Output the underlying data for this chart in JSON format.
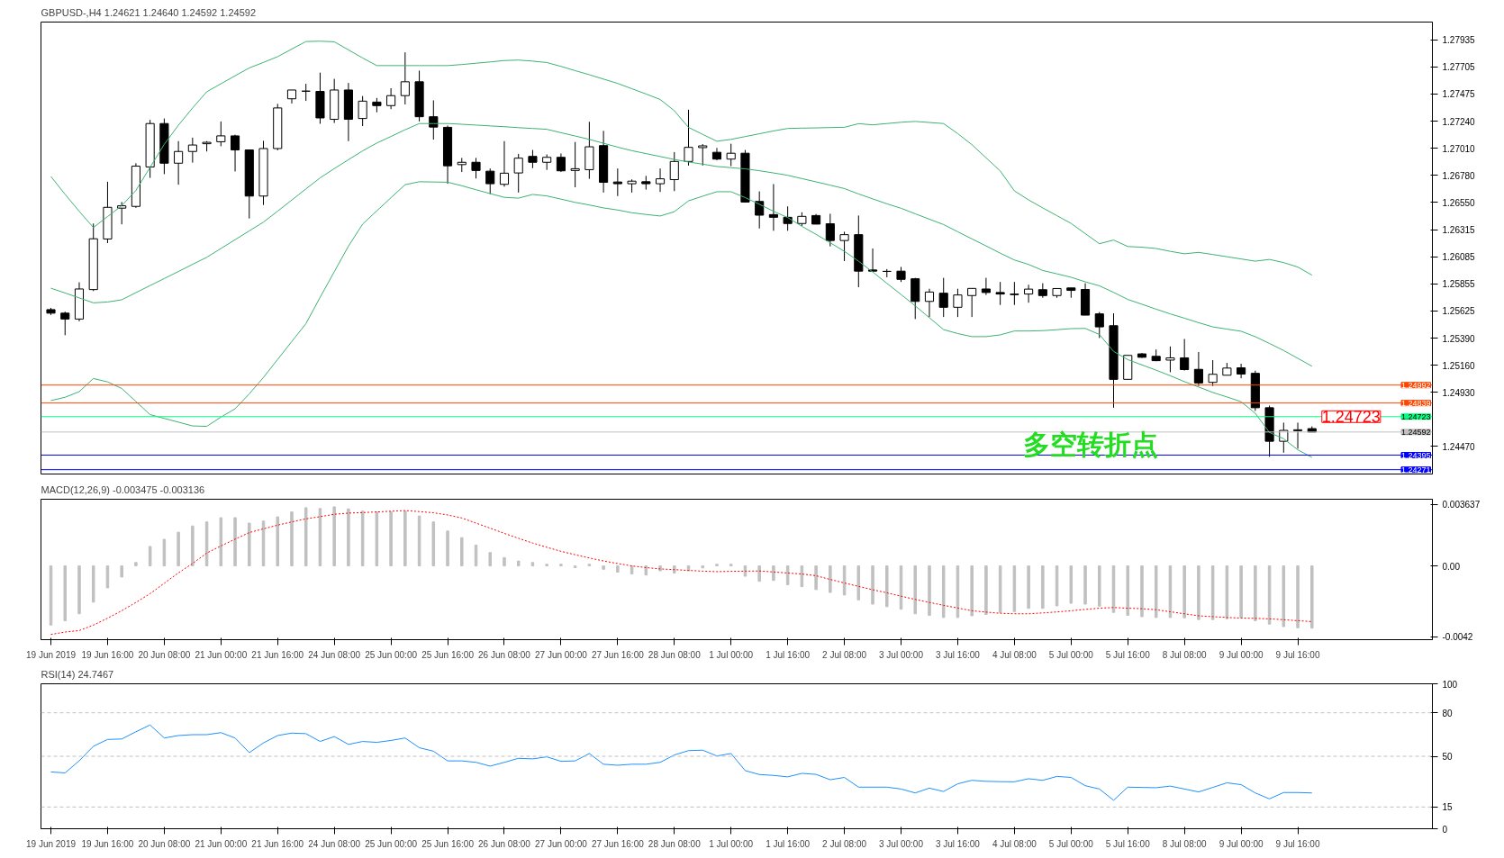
{
  "chart_data": [
    {
      "type": "candlestick",
      "title": "GBPUSD-,H4  1.24621 1.24640 1.24592 1.24592",
      "categories": [
        null,
        null,
        null,
        null,
        null,
        null,
        null,
        null,
        null,
        null,
        null,
        null,
        null,
        null,
        null,
        null,
        null,
        null,
        null,
        null,
        null,
        null,
        null,
        null,
        null,
        null,
        null,
        null,
        null,
        null,
        null,
        null,
        null,
        null,
        null,
        null,
        null,
        null,
        null,
        null,
        null,
        null,
        null,
        null,
        null,
        null,
        null,
        null,
        null,
        null,
        null,
        null,
        null,
        null,
        null,
        null,
        null,
        null,
        null,
        null,
        null,
        null,
        null,
        null,
        null,
        null,
        null,
        null,
        null,
        null,
        null,
        null,
        null,
        null,
        null,
        null,
        null,
        null,
        null,
        null,
        null,
        null,
        null,
        null,
        null,
        null,
        null,
        null,
        null,
        null
      ],
      "ohlc": [
        [
          1.25635,
          1.2565,
          1.2559,
          1.25605
        ],
        [
          1.25605,
          1.25618,
          1.25417,
          1.25555
        ],
        [
          1.25555,
          1.25868,
          1.25535,
          1.25811
        ],
        [
          1.25806,
          1.26369,
          1.25793,
          1.26239
        ],
        [
          1.26237,
          1.26725,
          1.26202,
          1.26507
        ],
        [
          1.265,
          1.26552,
          1.26362,
          1.2652
        ],
        [
          1.26515,
          1.26883,
          1.26502,
          1.26858
        ],
        [
          1.26851,
          1.27252,
          1.26758,
          1.27221
        ],
        [
          1.27221,
          1.27264,
          1.2679,
          1.26883
        ],
        [
          1.26883,
          1.27071,
          1.267,
          1.26983
        ],
        [
          1.26983,
          1.27101,
          1.26888,
          1.27038
        ],
        [
          1.27049,
          1.27071,
          1.26983,
          1.27061
        ],
        [
          1.27066,
          1.27239,
          1.27028,
          1.27116
        ],
        [
          1.27116,
          1.27126,
          1.26813,
          1.26996
        ],
        [
          1.26996,
          1.26996,
          1.26412,
          1.26603
        ],
        [
          1.26603,
          1.27074,
          1.26527,
          1.27008
        ],
        [
          1.27008,
          1.27389,
          1.26993,
          1.27354
        ],
        [
          1.27432,
          1.27507,
          1.27392,
          1.27507
        ],
        [
          1.27497,
          1.2756,
          1.27414,
          1.27497
        ],
        [
          1.27495,
          1.27655,
          1.27219,
          1.27269
        ],
        [
          1.27257,
          1.27602,
          1.27226,
          1.27507
        ],
        [
          1.27507,
          1.27567,
          1.27071,
          1.27257
        ],
        [
          1.27264,
          1.27455,
          1.27199,
          1.27412
        ],
        [
          1.27404,
          1.27439,
          1.27317,
          1.27374
        ],
        [
          1.27374,
          1.27522,
          1.27344,
          1.27459
        ],
        [
          1.27459,
          1.27828,
          1.27384,
          1.27577
        ],
        [
          1.27577,
          1.27672,
          1.27239,
          1.27279
        ],
        [
          1.27279,
          1.27419,
          1.27084,
          1.27191
        ],
        [
          1.27189,
          1.27204,
          1.26708,
          1.26861
        ],
        [
          1.26871,
          1.26928,
          1.26808,
          1.26891
        ],
        [
          1.26891,
          1.26928,
          1.26753,
          1.26821
        ],
        [
          1.26815,
          1.26838,
          1.2662,
          1.26708
        ],
        [
          1.26703,
          1.27071,
          1.26683,
          1.26798
        ],
        [
          1.268,
          1.26963,
          1.26633,
          1.26926
        ],
        [
          1.26941,
          1.26996,
          1.26841,
          1.26891
        ],
        [
          1.26891,
          1.26958,
          1.26826,
          1.26933
        ],
        [
          1.26933,
          1.26966,
          1.26808,
          1.26818
        ],
        [
          1.26821,
          1.27064,
          1.26678,
          1.26836
        ],
        [
          1.26828,
          1.27236,
          1.2675,
          1.27023
        ],
        [
          1.27033,
          1.27159,
          1.26633,
          1.2672
        ],
        [
          1.26723,
          1.26838,
          1.26603,
          1.26708
        ],
        [
          1.26708,
          1.26745,
          1.26633,
          1.2673
        ],
        [
          1.26725,
          1.26775,
          1.26658,
          1.26708
        ],
        [
          1.26708,
          1.26838,
          1.26638,
          1.2675
        ],
        [
          1.26743,
          1.26978,
          1.26645,
          1.26898
        ],
        [
          1.26898,
          1.27339,
          1.26863,
          1.27018
        ],
        [
          1.27016,
          1.27046,
          1.26863,
          1.27031
        ],
        [
          1.26976,
          1.27013,
          1.26908,
          1.26918
        ],
        [
          1.26918,
          1.27049,
          1.26858,
          1.26968
        ],
        [
          1.26968,
          1.26996,
          1.26547,
          1.26552
        ],
        [
          1.26557,
          1.26643,
          1.26327,
          1.2644
        ],
        [
          1.26445,
          1.26705,
          1.26307,
          1.26422
        ],
        [
          1.26422,
          1.26515,
          1.26307,
          1.26369
        ],
        [
          1.26369,
          1.26465,
          1.26349,
          1.2643
        ],
        [
          1.26437,
          1.2645,
          1.26362,
          1.26364
        ],
        [
          1.26367,
          1.26452,
          1.26174,
          1.26224
        ],
        [
          1.26224,
          1.26299,
          1.26049,
          1.26274
        ],
        [
          1.26274,
          1.26437,
          1.25826,
          1.25963
        ],
        [
          1.25973,
          1.26156,
          1.25961,
          1.25963
        ],
        [
          1.25961,
          1.25981,
          1.25911,
          1.25961
        ],
        [
          1.25963,
          1.25999,
          1.25871,
          1.25893
        ],
        [
          1.25898,
          1.25906,
          1.25555,
          1.25705
        ],
        [
          1.25705,
          1.25813,
          1.25572,
          1.25785
        ],
        [
          1.25775,
          1.25906,
          1.25572,
          1.25655
        ],
        [
          1.25655,
          1.25813,
          1.25572,
          1.2576
        ],
        [
          1.25755,
          1.25816,
          1.25572,
          1.25816
        ],
        [
          1.25811,
          1.25906,
          1.2576,
          1.25781
        ],
        [
          1.25781,
          1.25871,
          1.25675,
          1.25768
        ],
        [
          1.25768,
          1.25871,
          1.25675,
          1.25763
        ],
        [
          1.25768,
          1.25847,
          1.25694,
          1.2581
        ],
        [
          1.25805,
          1.2586,
          1.25736,
          1.25755
        ],
        [
          1.25755,
          1.25815,
          1.25736,
          1.25815
        ],
        [
          1.2582,
          1.2582,
          1.25736,
          1.25799
        ],
        [
          1.25807,
          1.2586,
          1.25588,
          1.25588
        ],
        [
          1.25599,
          1.25615,
          1.25393,
          1.25488
        ],
        [
          1.25498,
          1.25604,
          1.24799,
          1.25041
        ],
        [
          1.25041,
          1.25245,
          1.25041,
          1.25245
        ],
        [
          1.25258,
          1.25266,
          1.25224,
          1.25229
        ],
        [
          1.25237,
          1.25295,
          1.25195,
          1.252
        ],
        [
          1.25205,
          1.25321,
          1.25102,
          1.25224
        ],
        [
          1.25224,
          1.25385,
          1.25116,
          1.25124
        ],
        [
          1.25126,
          1.25274,
          1.24984,
          1.2501
        ],
        [
          1.25015,
          1.25205,
          1.24984,
          1.25084
        ],
        [
          1.25076,
          1.25181,
          1.25076,
          1.25137
        ],
        [
          1.25139,
          1.25174,
          1.2505,
          1.25086
        ],
        [
          1.25092,
          1.25115,
          1.24772,
          1.24799
        ],
        [
          1.24799,
          1.24817,
          1.24381,
          1.24513
        ],
        [
          1.24513,
          1.24672,
          1.24416,
          1.24606
        ],
        [
          1.24603,
          1.24672,
          1.2445,
          1.24611
        ],
        [
          1.24621,
          1.2464,
          1.24592,
          1.24592
        ]
      ],
      "series": [
        {
          "type": "line",
          "color": "#3cb371",
          "values": [
            1.2677,
            1.26618,
            1.26473,
            1.26335,
            1.26428,
            1.26521,
            1.26651,
            1.26848,
            1.27044,
            1.27207,
            1.27354,
            1.27492,
            1.2756,
            1.27628,
            1.27695,
            1.27742,
            1.27791,
            1.27856,
            1.2792,
            1.27923,
            1.27918,
            1.27849,
            1.2778,
            1.27715,
            1.27715,
            1.27715,
            1.27715,
            1.27715,
            1.27715,
            1.27724,
            1.27735,
            1.27746,
            1.27758,
            1.27762,
            1.27753,
            1.27741,
            1.27708,
            1.27672,
            1.27637,
            1.276,
            1.27563,
            1.27518,
            1.27473,
            1.27426,
            1.2733,
            1.27188,
            1.27129,
            1.2707,
            1.27086,
            1.2711,
            1.27134,
            1.27158,
            1.27179,
            1.27182,
            1.27184,
            1.27187,
            1.27189,
            1.2722,
            1.2721,
            1.27221,
            1.27232,
            1.27239,
            1.2723,
            1.27221,
            1.27135,
            1.27041,
            1.26929,
            1.26817,
            1.26647,
            1.2657,
            1.26502,
            1.26436,
            1.2637,
            1.26283,
            1.26197,
            1.26228,
            1.26173,
            1.26167,
            1.26156,
            1.26132,
            1.26111,
            1.26123,
            1.26105,
            1.26086,
            1.26067,
            1.26048,
            1.26063,
            1.26036,
            1.25998,
            1.25929
          ]
        },
        {
          "type": "line",
          "color": "#3cb371",
          "values": [
            1.25818,
            1.25777,
            1.25735,
            1.25693,
            1.257,
            1.25719,
            1.2578,
            1.2584,
            1.259,
            1.2596,
            1.26021,
            1.26081,
            1.26156,
            1.26231,
            1.26306,
            1.26381,
            1.26474,
            1.26569,
            1.26664,
            1.26758,
            1.26837,
            1.26913,
            1.26988,
            1.27055,
            1.27111,
            1.27168,
            1.27221,
            1.27221,
            1.27221,
            1.27215,
            1.27208,
            1.27201,
            1.27194,
            1.27186,
            1.27179,
            1.27172,
            1.27143,
            1.27115,
            1.27086,
            1.27053,
            1.2702,
            1.2699,
            1.26965,
            1.2694,
            1.26915,
            1.26893,
            1.26875,
            1.26855,
            1.26845,
            1.26835,
            1.26819,
            1.268,
            1.2678,
            1.26752,
            1.26724,
            1.26696,
            1.26667,
            1.26621,
            1.26579,
            1.26537,
            1.26499,
            1.26452,
            1.26406,
            1.2636,
            1.26299,
            1.26238,
            1.26178,
            1.26116,
            1.26058,
            1.2602,
            1.25969,
            1.2594,
            1.25911,
            1.25872,
            1.25838,
            1.25782,
            1.25722,
            1.25681,
            1.25639,
            1.25599,
            1.25562,
            1.25524,
            1.25488,
            1.25469,
            1.25451,
            1.25404,
            1.25347,
            1.25287,
            1.2522,
            1.25153
          ]
        },
        {
          "type": "line",
          "color": "#3cb371",
          "values": [
            1.2486,
            1.24888,
            1.24936,
            1.25048,
            1.25019,
            1.24963,
            1.24852,
            1.2474,
            1.24708,
            1.24676,
            1.24644,
            1.2464,
            1.24719,
            1.2479,
            1.24917,
            1.25057,
            1.2521,
            1.25363,
            1.25516,
            1.2574,
            1.25958,
            1.26176,
            1.26364,
            1.26477,
            1.26589,
            1.267,
            1.26725,
            1.26723,
            1.26721,
            1.26691,
            1.26657,
            1.26624,
            1.26592,
            1.26585,
            1.26617,
            1.26604,
            1.26577,
            1.26549,
            1.26527,
            1.26502,
            1.26484,
            1.26461,
            1.26446,
            1.26433,
            1.2647,
            1.26562,
            1.26602,
            1.2664,
            1.2664,
            1.2659,
            1.26533,
            1.26473,
            1.2642,
            1.26345,
            1.26277,
            1.26205,
            1.26132,
            1.26048,
            1.25956,
            1.25859,
            1.25764,
            1.25667,
            1.25566,
            1.25465,
            1.25431,
            1.25405,
            1.25405,
            1.2542,
            1.25453,
            1.25453,
            1.25456,
            1.25464,
            1.25473,
            1.25475,
            1.25423,
            1.25279,
            1.25209,
            1.25164,
            1.25119,
            1.25072,
            1.25021,
            1.24976,
            1.24929,
            1.24891,
            1.2485,
            1.24752,
            1.24588,
            1.24535,
            1.2444,
            1.24376
          ]
        }
      ],
      "ref_lines": [
        {
          "axis": "y",
          "value": 1.24992,
          "label": "1.24992",
          "color": "#ff4500"
        },
        {
          "axis": "y",
          "value": 1.24839,
          "label": "1.24839",
          "color": "#ff4500"
        },
        {
          "axis": "y",
          "value": 1.24723,
          "label": "1.24723",
          "color": "#00ff7f"
        },
        {
          "axis": "y",
          "value": 1.24592,
          "label": "1.24592",
          "color": "#c0c0c0"
        },
        {
          "axis": "y",
          "value": 1.24395,
          "label": "1.24395",
          "color": "#0000ff"
        },
        {
          "axis": "y",
          "value": 1.24271,
          "label": "1.24271",
          "color": "#0000ff"
        }
      ],
      "annotations": [
        {
          "text": "1.24723",
          "y": 1.24723
        },
        "多空转折点"
      ],
      "ylim": [
        1.24234,
        1.28086
      ],
      "yticks": [
        {
          "value": 1.27935,
          "label": "1.27935"
        },
        {
          "value": 1.27705,
          "label": "1.27705"
        },
        {
          "value": 1.27475,
          "label": "1.27475"
        },
        {
          "value": 1.2724,
          "label": "1.27240"
        },
        {
          "value": 1.2701,
          "label": "1.27010"
        },
        {
          "value": 1.2678,
          "label": "1.26780"
        },
        {
          "value": 1.2655,
          "label": "1.26550"
        },
        {
          "value": 1.26315,
          "label": "1.26315"
        },
        {
          "value": 1.26085,
          "label": "1.26085"
        },
        {
          "value": 1.25855,
          "label": "1.25855"
        },
        {
          "value": 1.25625,
          "label": "1.25625"
        },
        {
          "value": 1.2539,
          "label": "1.25390"
        },
        {
          "value": 1.2516,
          "label": "1.25160"
        },
        {
          "value": 1.2493,
          "label": "1.24930"
        },
        {
          "value": 1.2447,
          "label": "1.24470"
        }
      ],
      "tick_labels": "y"
    },
    {
      "type": "bar",
      "title": "MACD(12,26,9) -0.003475 -0.003136",
      "categories": [
        "19 Jun 2019",
        null,
        null,
        null,
        "19 Jun 16:00",
        null,
        null,
        null,
        "20 Jun 08:00",
        null,
        null,
        null,
        "21 Jun 00:00",
        null,
        null,
        null,
        "21 Jun 16:00",
        null,
        null,
        null,
        "24 Jun 08:00",
        null,
        null,
        null,
        "25 Jun 00:00",
        null,
        null,
        null,
        "25 Jun 16:00",
        null,
        null,
        null,
        "26 Jun 08:00",
        null,
        null,
        null,
        "27 Jun 00:00",
        null,
        null,
        null,
        "27 Jun 16:00",
        null,
        null,
        null,
        "28 Jun 08:00",
        null,
        null,
        null,
        "1 Jul 00:00",
        null,
        null,
        null,
        "1 Jul 16:00",
        null,
        null,
        null,
        "2 Jul 08:00",
        null,
        null,
        null,
        "3 Jul 00:00",
        null,
        null,
        null,
        "3 Jul 16:00",
        null,
        null,
        null,
        "4 Jul 08:00",
        null,
        null,
        null,
        "5 Jul 00:00",
        null,
        null,
        null,
        "5 Jul 16:00",
        null,
        null,
        null,
        "8 Jul 08:00",
        null,
        null,
        null,
        "9 Jul 00:00",
        null,
        null,
        null,
        "9 Jul 16:00",
        null
      ],
      "series": [
        {
          "type": "bar",
          "color": "#c0c0c0",
          "values": [
            -0.0035,
            -0.00324,
            -0.00283,
            -0.00214,
            -0.0013,
            -0.00066,
            0.0002,
            0.00115,
            0.00157,
            0.00199,
            0.00236,
            0.0026,
            0.00285,
            0.00285,
            0.00253,
            0.00265,
            0.0029,
            0.00319,
            0.00344,
            0.00339,
            0.00349,
            0.00337,
            0.00324,
            0.00319,
            0.00319,
            0.00324,
            0.00295,
            0.0026,
            0.00206,
            0.00167,
            0.00123,
            0.00079,
            0.00049,
            0.00029,
            0.0002,
            0.0001,
            0.0001,
            -0.0001,
            0.0001,
            -0.0002,
            -0.00037,
            -0.00047,
            -0.00054,
            -0.00029,
            -0.00042,
            -0.00029,
            -0.00012,
            0.0001,
            0.0001,
            -0.00061,
            -0.00091,
            -0.00086,
            -0.00111,
            -0.00123,
            -0.0014,
            -0.00157,
            -0.00172,
            -0.00201,
            -0.00226,
            -0.00241,
            -0.00256,
            -0.00283,
            -0.00292,
            -0.00305,
            -0.00305,
            -0.00295,
            -0.00287,
            -0.00275,
            -0.0027,
            -0.00251,
            -0.00251,
            -0.00236,
            -0.00221,
            -0.00226,
            -0.00238,
            -0.00275,
            -0.00292,
            -0.003,
            -0.00305,
            -0.00305,
            -0.00307,
            -0.00317,
            -0.00317,
            -0.00312,
            -0.00305,
            -0.00324,
            -0.00344,
            -0.00359,
            -0.00366,
            -0.00368
          ]
        },
        {
          "type": "line",
          "color": "#ff0000",
          "line_style": "dotted",
          "values": [
            -0.00405,
            -0.00391,
            -0.00382,
            -0.0035,
            -0.00309,
            -0.00265,
            -0.00216,
            -0.00164,
            -0.00103,
            -0.00041,
            0.00014,
            0.00076,
            0.00118,
            0.00158,
            0.00197,
            0.00219,
            0.00241,
            0.0026,
            0.00278,
            0.00291,
            0.00305,
            0.00312,
            0.00315,
            0.00319,
            0.00323,
            0.00327,
            0.00321,
            0.00314,
            0.00301,
            0.00283,
            0.00253,
            0.00223,
            0.00192,
            0.00163,
            0.00135,
            0.0011,
            0.00086,
            0.00066,
            0.00047,
            0.00029,
            0.00014,
            0,
            -0.0001,
            -0.00018,
            -0.00022,
            -0.00027,
            -0.00031,
            -0.00034,
            -0.00032,
            -0.00031,
            -0.0003,
            -0.00036,
            -0.00042,
            -0.00048,
            -0.00058,
            -0.0008,
            -0.00101,
            -0.00121,
            -0.00141,
            -0.00159,
            -0.00179,
            -0.00198,
            -0.00216,
            -0.00233,
            -0.00249,
            -0.00265,
            -0.00273,
            -0.0028,
            -0.00283,
            -0.00283,
            -0.00278,
            -0.00272,
            -0.00265,
            -0.00257,
            -0.0025,
            -0.00246,
            -0.0025,
            -0.00253,
            -0.00259,
            -0.00271,
            -0.00283,
            -0.00295,
            -0.003,
            -0.00305,
            -0.00308,
            -0.0031,
            -0.00313,
            -0.00318,
            -0.00324,
            -0.00329
          ]
        }
      ],
      "ylim": [
        -0.00436,
        0.00394
      ],
      "yticks": [
        {
          "value": 0.003637,
          "label": "0.003637"
        },
        {
          "value": 0,
          "label": "0.00"
        },
        {
          "value": -0.0042,
          "label": "-0.0042"
        }
      ]
    },
    {
      "type": "line",
      "title": "RSI(14) 24.7467",
      "categories": [
        "19 Jun 2019",
        null,
        null,
        null,
        "19 Jun 16:00",
        null,
        null,
        null,
        "20 Jun 08:00",
        null,
        null,
        null,
        "21 Jun 00:00",
        null,
        null,
        null,
        "21 Jun 16:00",
        null,
        null,
        null,
        "24 Jun 08:00",
        null,
        null,
        null,
        "25 Jun 00:00",
        null,
        null,
        null,
        "25 Jun 16:00",
        null,
        null,
        null,
        "26 Jun 08:00",
        null,
        null,
        null,
        "27 Jun 00:00",
        null,
        null,
        null,
        "27 Jun 16:00",
        null,
        null,
        null,
        "28 Jun 08:00",
        null,
        null,
        null,
        "1 Jul 00:00",
        null,
        null,
        null,
        "1 Jul 16:00",
        null,
        null,
        null,
        "2 Jul 08:00",
        null,
        null,
        null,
        "3 Jul 00:00",
        null,
        null,
        null,
        "3 Jul 16:00",
        null,
        null,
        null,
        "4 Jul 08:00",
        null,
        null,
        null,
        "5 Jul 00:00",
        null,
        null,
        null,
        "5 Jul 16:00",
        null,
        null,
        null,
        "8 Jul 08:00",
        null,
        null,
        null,
        "9 Jul 00:00",
        null,
        null,
        null,
        "9 Jul 16:00",
        null
      ],
      "series": [
        {
          "color": "#1e90ff",
          "values": [
            39.2,
            38.5,
            46.9,
            56.9,
            61.6,
            61.9,
            66.9,
            71.6,
            62.6,
            64.3,
            64.9,
            64.9,
            66.3,
            62.6,
            52.5,
            59.2,
            64.3,
            66.0,
            65.6,
            60.2,
            63.6,
            58.2,
            60.2,
            59.6,
            60.9,
            62.6,
            55.9,
            53.5,
            46.8,
            46.8,
            45.8,
            43.2,
            45.8,
            48.6,
            48.2,
            49.6,
            46.5,
            46.8,
            51.9,
            44.5,
            43.8,
            44.5,
            44.5,
            45.8,
            50.9,
            53.9,
            54.2,
            50.2,
            51.9,
            40.1,
            37.4,
            36.8,
            35.8,
            38.2,
            37.5,
            33.8,
            35.4,
            28.7,
            28.7,
            28.7,
            27.4,
            24.7,
            28.0,
            25.7,
            31.0,
            33.4,
            32.7,
            32.5,
            32.4,
            34.5,
            33.4,
            36.1,
            35.4,
            29.7,
            27.4,
            19.6,
            28.7,
            28.5,
            28.3,
            29.4,
            27.4,
            25.4,
            28.5,
            31.7,
            30.4,
            24.7,
            20.6,
            25.0,
            25.0,
            24.7
          ]
        }
      ],
      "ref_lines": [
        {
          "axis": "y",
          "value": 80,
          "color": "#c0c0c0",
          "line_style": "dashed"
        },
        {
          "axis": "y",
          "value": 50,
          "color": "#c0c0c0",
          "line_style": "dashed"
        },
        {
          "axis": "y",
          "value": 15,
          "color": "#c0c0c0",
          "line_style": "dashed"
        }
      ],
      "ylim": [
        0,
        100
      ],
      "yticks": [
        0,
        15,
        50,
        80,
        100
      ]
    }
  ]
}
